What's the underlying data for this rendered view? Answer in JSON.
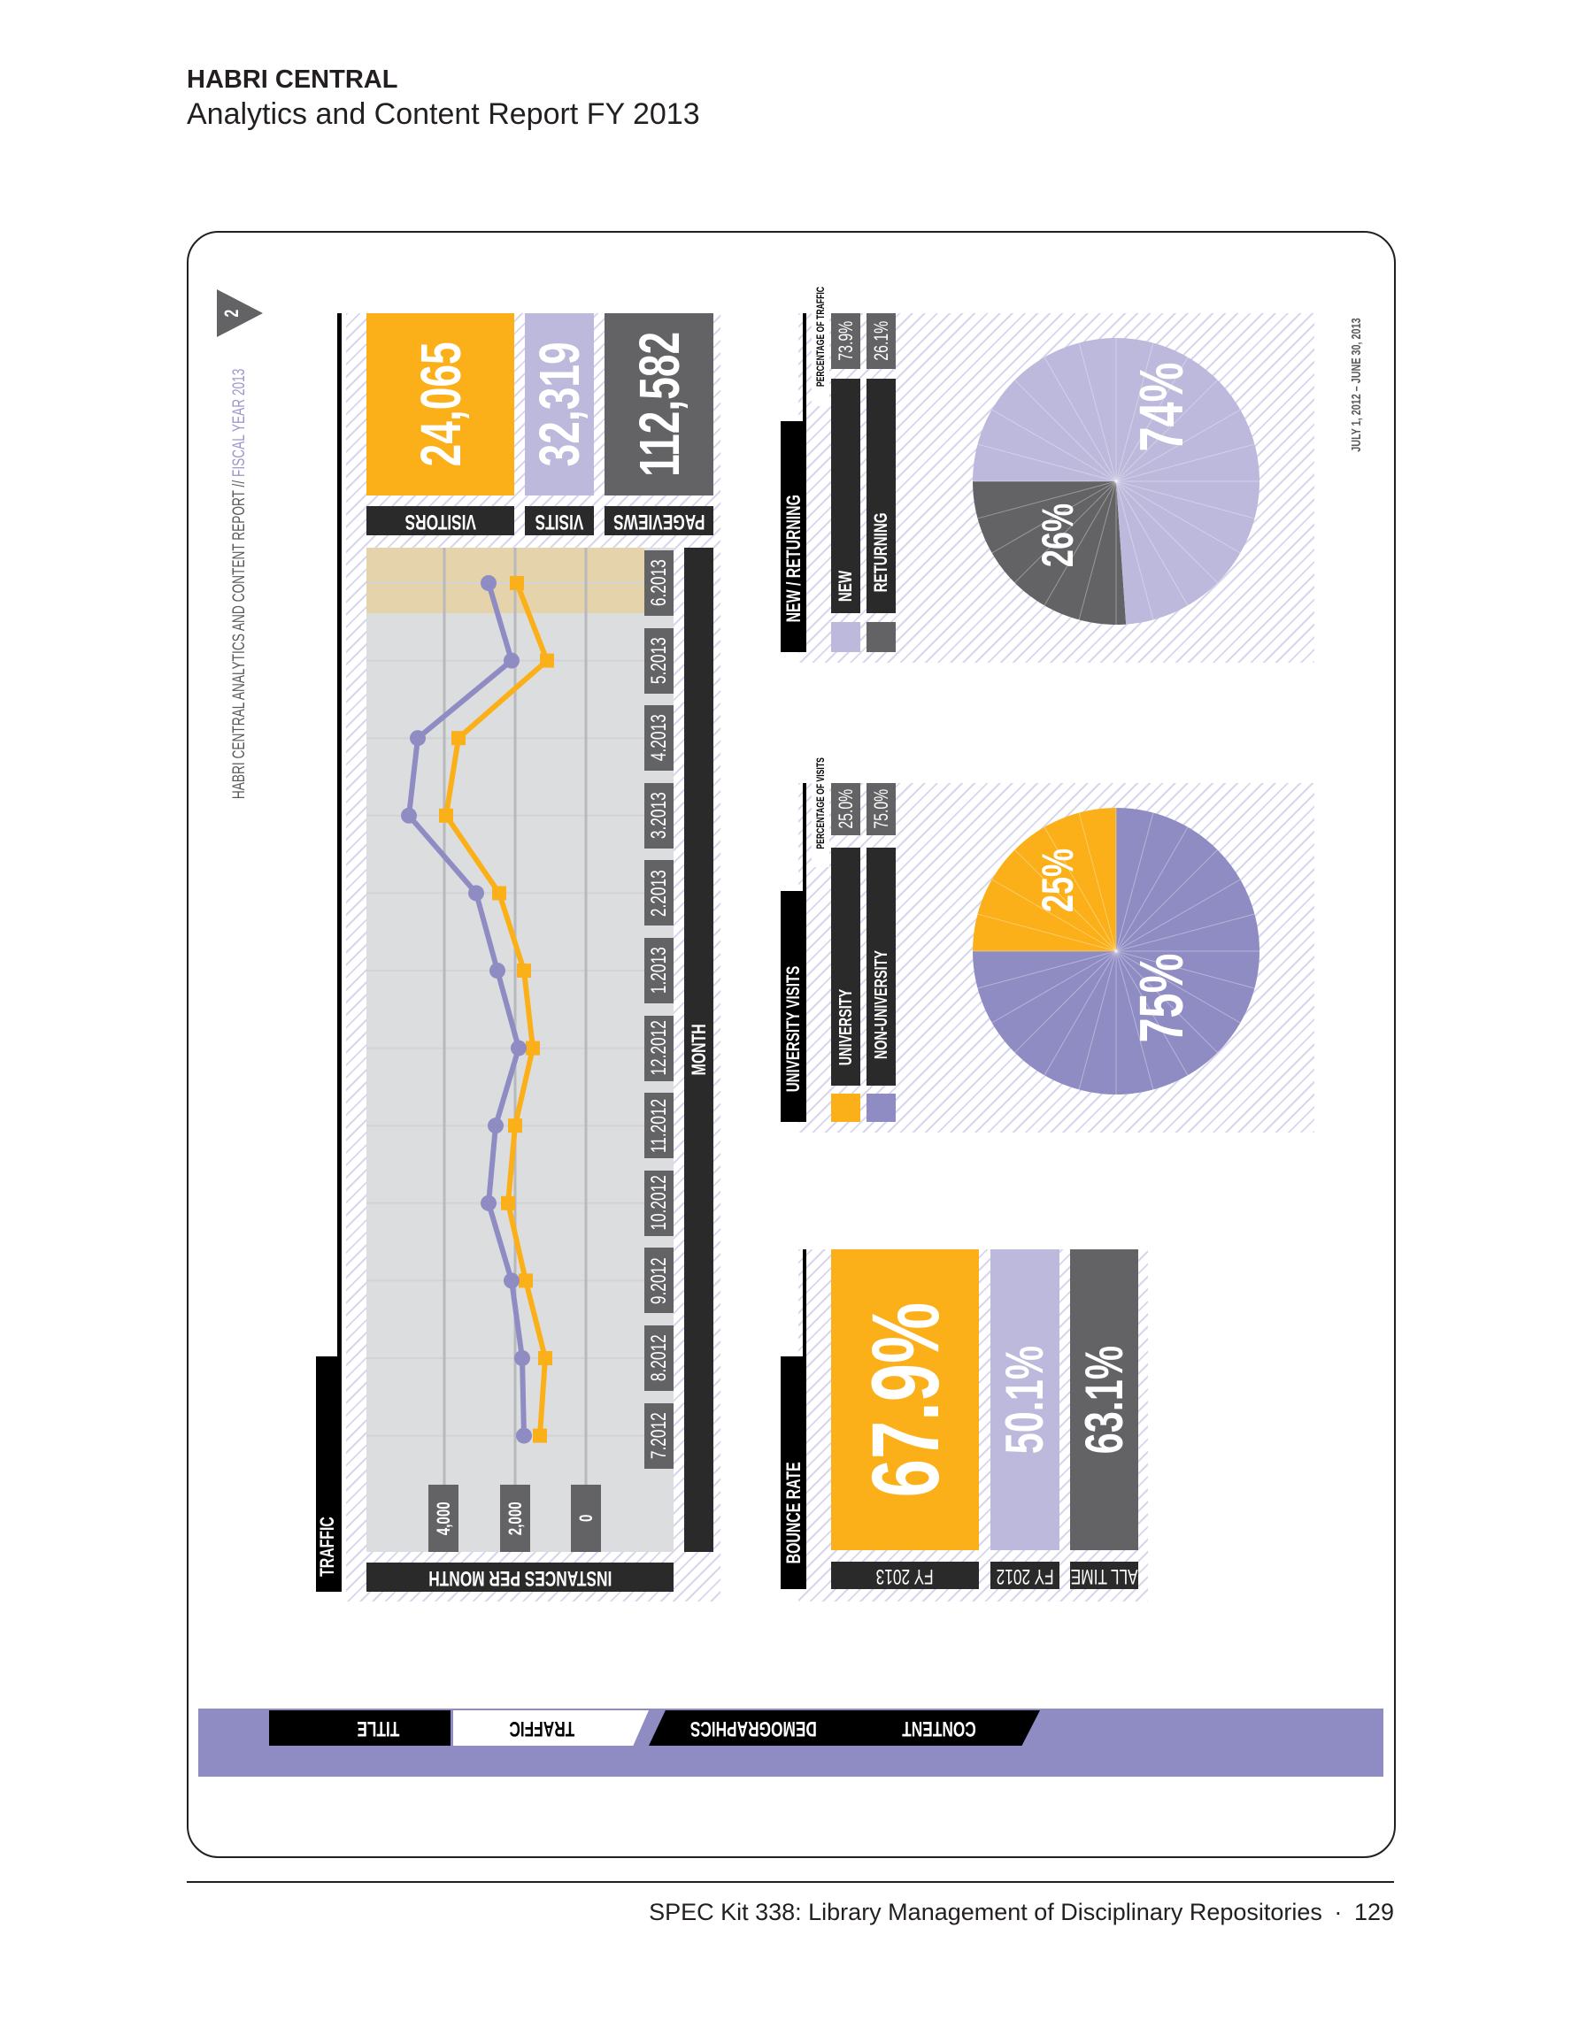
{
  "header": {
    "title": "HABRI CENTRAL",
    "subtitle": "Analytics and Content Report FY 2013"
  },
  "sidebar": {
    "report_label": "HABRI CENTRAL ANALYTICS AND CONTENT REPORT // ",
    "fiscal_year": "FISCAL YEAR 2013",
    "page_marker": "2"
  },
  "date_range": "JULY 1, 2012 – JUNE 30, 2013",
  "traffic": {
    "section_title": "TRAFFIC",
    "totals": [
      {
        "label": "VISITORS",
        "value": "24,065"
      },
      {
        "label": "VISITS",
        "value": "32,319"
      },
      {
        "label": "PAGEVIEWS",
        "value": "112,582"
      }
    ],
    "y_axis_label": "INSTANCES PER MONTH",
    "x_axis_label": "MONTH"
  },
  "chart_data": {
    "type": "line",
    "categories": [
      "7.2012",
      "8.2012",
      "9.2012",
      "10.2012",
      "11.2012",
      "12.2012",
      "1.2013",
      "2.2013",
      "3.2013",
      "4.2013",
      "5.2013",
      "6.2013"
    ],
    "y_ticks": [
      "4,000",
      "2,000",
      "0"
    ],
    "ylim": [
      0,
      4000
    ],
    "xlabel": "MONTH",
    "ylabel": "INSTANCES PER MONTH",
    "highlighted_category": "6.2013",
    "grid": true,
    "orientation": "rotated 90° (months along vertical axis)",
    "series": [
      {
        "color": "#fbb01a",
        "marker": "square",
        "values": [
          1300,
          1150,
          1700,
          2200,
          2000,
          1500,
          1750,
          2450,
          3950,
          3600,
          1100,
          1950
        ]
      },
      {
        "color": "#8f8cc4",
        "marker": "circle",
        "values": [
          1750,
          1800,
          2100,
          2750,
          2550,
          1900,
          2500,
          3100,
          5000,
          4750,
          2100,
          2750
        ]
      }
    ]
  },
  "new_returning": {
    "title": "NEW / RETURNING",
    "caption": "PERCENTAGE OF TRAFFIC",
    "items": [
      {
        "label": "NEW",
        "percent": "73.9%",
        "pie_label": "74%",
        "value": 73.9,
        "color": "#bcb9dc"
      },
      {
        "label": "RETURNING",
        "percent": "26.1%",
        "pie_label": "26%",
        "value": 26.1,
        "color": "#636366"
      }
    ]
  },
  "university": {
    "title": "UNIVERSITY VISITS",
    "caption": "PERCENTAGE OF VISITS",
    "items": [
      {
        "label": "UNIVERSITY",
        "percent": "25.0%",
        "pie_label": "25%",
        "value": 25.0,
        "color": "#fbb01a"
      },
      {
        "label": "NON-UNIVERSITY",
        "percent": "75.0%",
        "pie_label": "75%",
        "value": 75.0,
        "color": "#8f8cc4"
      }
    ]
  },
  "bounce": {
    "title": "BOUNCE RATE",
    "items": [
      {
        "label": "FY 2013",
        "value": "67.9%"
      },
      {
        "label": "FY 2012",
        "value": "50.1%"
      },
      {
        "label": "ALL TIME",
        "value": "63.1%"
      }
    ]
  },
  "tabs": [
    {
      "label": "TITLE",
      "active": false
    },
    {
      "label": "TRAFFIC",
      "active": true
    },
    {
      "label": "DEMOGRAPHICS",
      "active": false
    },
    {
      "label": "CONTENT",
      "active": false
    }
  ],
  "colors": {
    "orange": "#fbb01a",
    "lavender": "#bcb9dc",
    "purple": "#8f8cc4",
    "gray": "#636366",
    "dark": "#2a2a2a",
    "highlight": "#e5d3ab"
  },
  "footer": {
    "text": "SPEC Kit 338: Library Management of Disciplinary Repositories",
    "separator": "·",
    "page_number": "129"
  }
}
